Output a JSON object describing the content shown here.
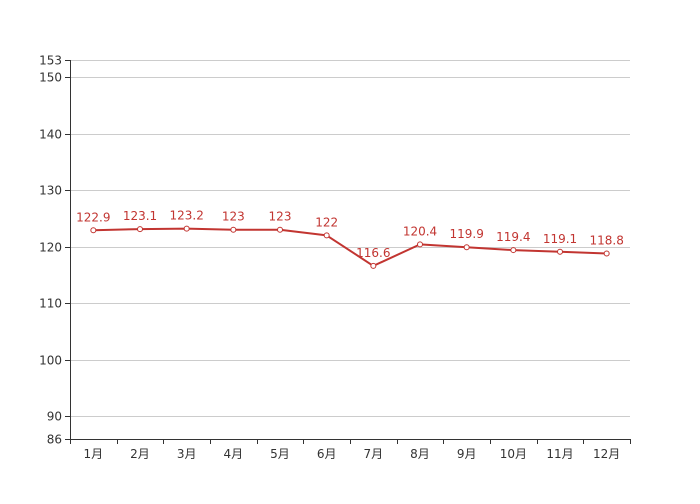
{
  "chart_data": {
    "type": "line",
    "title": "",
    "xlabel": "",
    "ylabel": "",
    "categories": [
      "1月",
      "2月",
      "3月",
      "4月",
      "5月",
      "6月",
      "7月",
      "8月",
      "9月",
      "10月",
      "11月",
      "12月"
    ],
    "series": [
      {
        "values": [
          122.9,
          123.1,
          123.2,
          123,
          123,
          122,
          116.6,
          120.4,
          119.9,
          119.4,
          119.1,
          118.8
        ],
        "labels": [
          "122.9",
          "123.1",
          "123.2",
          "123",
          "123",
          "122",
          "116.6",
          "120.4",
          "119.9",
          "119.4",
          "119.1",
          "118.8"
        ]
      }
    ],
    "ylim": [
      86,
      153
    ],
    "y_ticks": [
      86,
      90,
      100,
      110,
      120,
      130,
      140,
      150,
      153
    ],
    "y_tick_labels": [
      "86",
      "90",
      "100",
      "110",
      "120",
      "130",
      "140",
      "150",
      "153"
    ],
    "grid": true,
    "legend": "none",
    "colors": {
      "series": "#c23531",
      "grid": "#cccccc",
      "axis": "#333333",
      "label": "#333333"
    }
  }
}
